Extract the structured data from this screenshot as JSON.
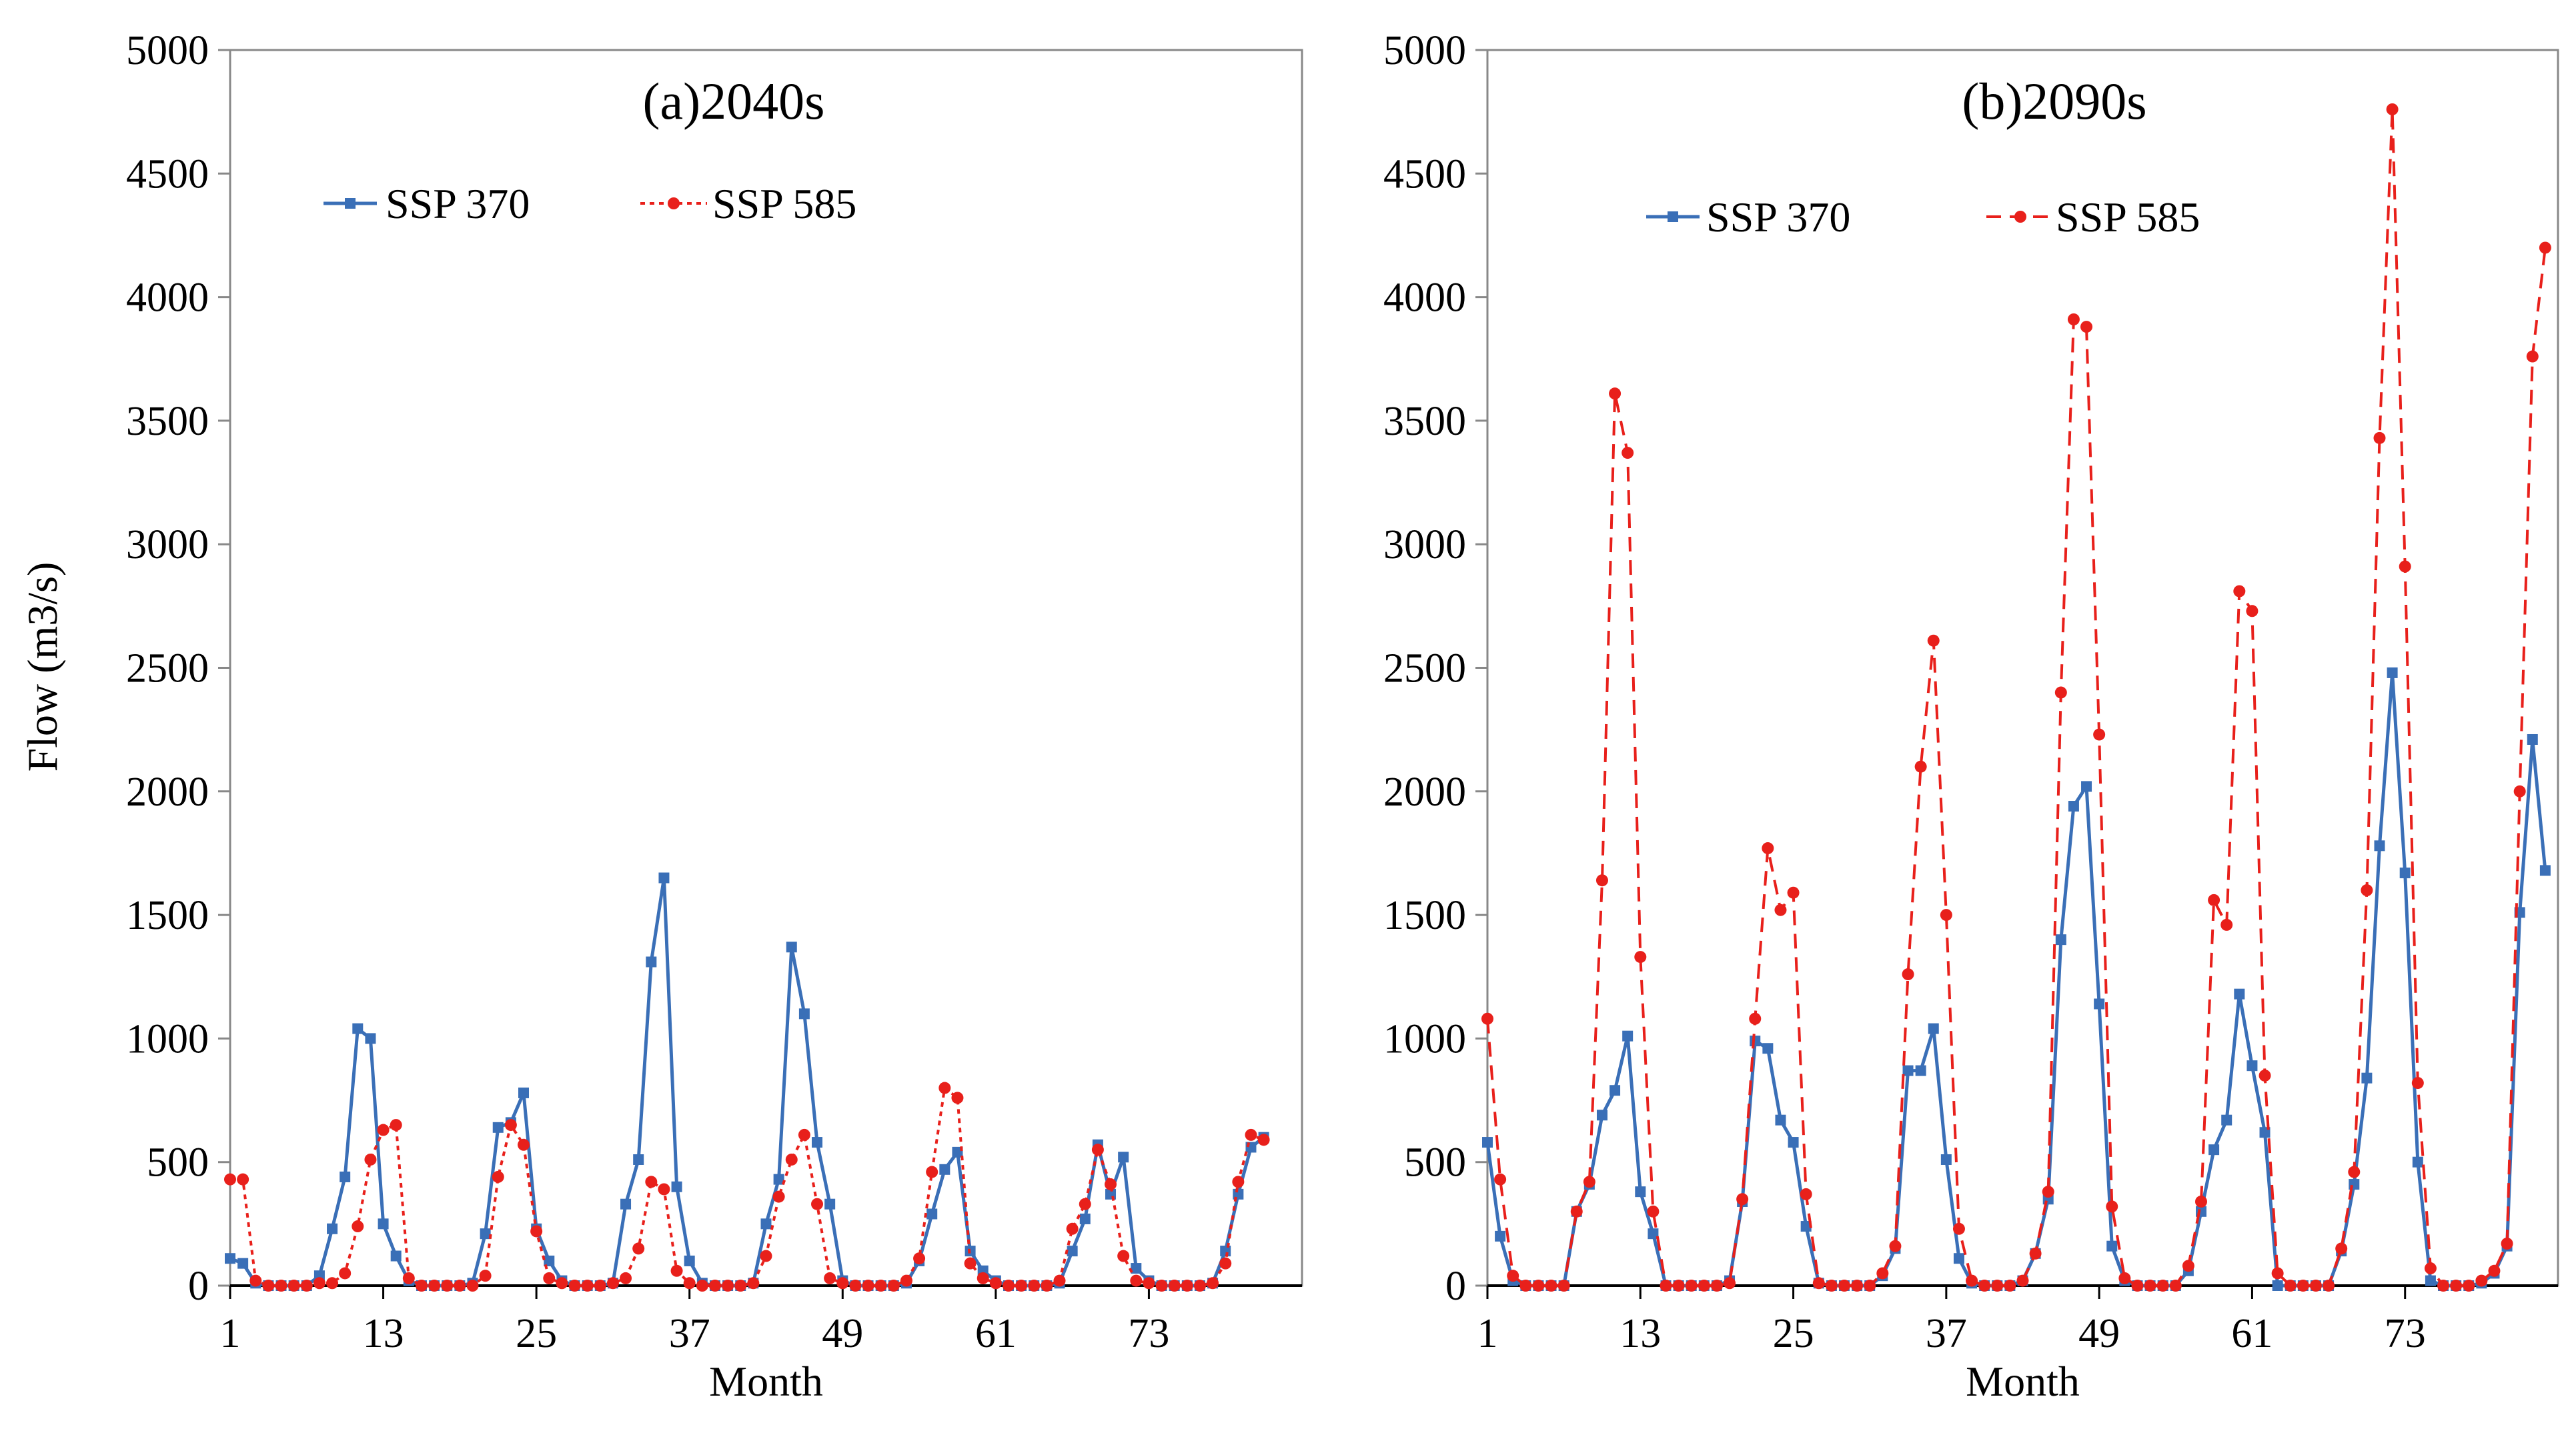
{
  "chart_data": [
    {
      "type": "line",
      "panel": "left",
      "title": "(a)2040s",
      "xlabel": "Month",
      "ylabel": "Flow (m3/s)",
      "ylim": [
        0,
        5000
      ],
      "yticks": [
        "0",
        "500",
        "1000",
        "1500",
        "2000",
        "2500",
        "3000",
        "3500",
        "4000",
        "4500",
        "5000"
      ],
      "xlim": [
        1,
        85
      ],
      "xticks": [
        "1",
        "13",
        "25",
        "37",
        "49",
        "61",
        "73"
      ],
      "legend_position": "top-left",
      "series": [
        {
          "name": "SSP 370",
          "color": "#3a6fb7",
          "style": "solid",
          "marker": "square",
          "values": [
            110,
            90,
            10,
            0,
            0,
            0,
            0,
            40,
            230,
            440,
            1040,
            1000,
            250,
            120,
            20,
            0,
            0,
            0,
            0,
            10,
            210,
            640,
            660,
            780,
            230,
            100,
            20,
            0,
            0,
            0,
            10,
            330,
            510,
            1310,
            1650,
            400,
            100,
            10,
            0,
            0,
            0,
            10,
            250,
            430,
            1370,
            1100,
            580,
            330,
            20,
            0,
            0,
            0,
            0,
            10,
            100,
            290,
            470,
            540,
            140,
            60,
            20,
            0,
            0,
            0,
            0,
            10,
            140,
            270,
            570,
            370,
            520,
            70,
            20,
            0,
            0,
            0,
            0,
            10,
            140,
            370,
            560,
            600
          ]
        },
        {
          "name": "SSP 585",
          "color": "#e8201b",
          "style": "dotted",
          "marker": "circle",
          "values": [
            430,
            430,
            20,
            0,
            0,
            0,
            0,
            10,
            10,
            50,
            240,
            510,
            630,
            650,
            30,
            0,
            0,
            0,
            0,
            0,
            40,
            440,
            650,
            570,
            220,
            30,
            10,
            0,
            0,
            0,
            10,
            30,
            150,
            420,
            390,
            60,
            10,
            0,
            0,
            0,
            0,
            10,
            120,
            360,
            510,
            610,
            330,
            30,
            10,
            0,
            0,
            0,
            0,
            20,
            110,
            460,
            800,
            760,
            90,
            30,
            10,
            0,
            0,
            0,
            0,
            20,
            230,
            330,
            550,
            410,
            120,
            20,
            10,
            0,
            0,
            0,
            0,
            10,
            90,
            420,
            610,
            590
          ]
        }
      ]
    },
    {
      "type": "line",
      "panel": "right",
      "title": "(b)2090s",
      "xlabel": "Month",
      "ylabel": "",
      "ylim": [
        0,
        5000
      ],
      "yticks": [
        "0",
        "500",
        "1000",
        "1500",
        "2000",
        "2500",
        "3000",
        "3500",
        "4000",
        "4500",
        "5000"
      ],
      "xlim": [
        1,
        85
      ],
      "xticks": [
        "1",
        "13",
        "25",
        "37",
        "49",
        "61",
        "73"
      ],
      "legend_position": "top-center",
      "series": [
        {
          "name": "SSP 370",
          "color": "#3a6fb7",
          "style": "solid",
          "marker": "square",
          "values": [
            580,
            200,
            20,
            0,
            0,
            0,
            0,
            300,
            410,
            690,
            790,
            1010,
            380,
            210,
            0,
            0,
            0,
            0,
            0,
            20,
            340,
            990,
            960,
            670,
            580,
            240,
            10,
            0,
            0,
            0,
            0,
            40,
            150,
            870,
            870,
            1040,
            510,
            110,
            10,
            0,
            0,
            0,
            20,
            130,
            350,
            1400,
            1940,
            2020,
            1140,
            160,
            20,
            0,
            0,
            0,
            0,
            60,
            300,
            550,
            670,
            1180,
            890,
            620,
            0,
            0,
            0,
            0,
            0,
            140,
            410,
            840,
            1780,
            2480,
            1670,
            500,
            20,
            0,
            0,
            0,
            10,
            50,
            160,
            1510,
            2210,
            1680
          ]
        },
        {
          "name": "SSP 585",
          "color": "#e8201b",
          "style": "dashed",
          "marker": "circle",
          "values": [
            1080,
            430,
            40,
            0,
            0,
            0,
            0,
            300,
            420,
            1640,
            3610,
            3370,
            1330,
            300,
            0,
            0,
            0,
            0,
            0,
            10,
            350,
            1080,
            1770,
            1520,
            1590,
            370,
            10,
            0,
            0,
            0,
            0,
            50,
            160,
            1260,
            2100,
            2610,
            1500,
            230,
            20,
            0,
            0,
            0,
            20,
            130,
            380,
            2400,
            3910,
            3880,
            2230,
            320,
            30,
            0,
            0,
            0,
            0,
            80,
            340,
            1560,
            1460,
            2810,
            2730,
            850,
            50,
            0,
            0,
            0,
            0,
            150,
            460,
            1600,
            3430,
            4760,
            2910,
            820,
            70,
            0,
            0,
            0,
            20,
            60,
            170,
            2000,
            3760,
            4200
          ]
        }
      ]
    }
  ]
}
